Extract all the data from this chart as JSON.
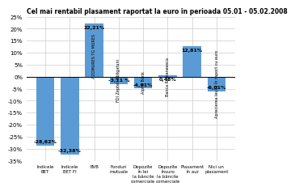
{
  "title": "Cel mai rentabil plasament raportat la euro în perioada 05.01 - 05.02.2008",
  "categories": [
    "Indicele\nBET",
    "Indicele\nBET FI",
    "BVB",
    "Fonduri\nmutuale",
    "Depozite\nîn lei\nla băncile\ncomerciale",
    "Depozite\nînsuro\nla băncile\ncomerciale",
    "Plasament\nîn aur",
    "Nici un\nplasament"
  ],
  "rotated_labels": [
    "AZOMURES TG MURES",
    "FDI Zepter Obligatuni",
    "Alpha Bank",
    "Banca Romaneasca",
    "Aprecierea leului în raport cu euro"
  ],
  "rotated_label_indices": [
    2,
    3,
    4,
    5,
    7
  ],
  "values": [
    -28.62,
    -32.38,
    22.21,
    -3.11,
    -4.91,
    0.48,
    12.81,
    -6.01
  ],
  "bar_color": "#5B9BD5",
  "ylim": [
    -35,
    25
  ],
  "yticks": [
    -35,
    -30,
    -25,
    -20,
    -15,
    -10,
    -5,
    0,
    5,
    10,
    15,
    20,
    25
  ],
  "ytick_labels": [
    "-35%",
    "-30%",
    "-25%",
    "-20%",
    "-15%",
    "-10%",
    "-5%",
    "0%",
    "5%",
    "10%",
    "15%",
    "20%",
    "25%"
  ],
  "value_labels": [
    "-28,62%",
    "-32,38%",
    "22,21%",
    "-3,11 %",
    "-4,91%",
    "0,48%",
    "12,81%",
    "-6,01%"
  ],
  "background_color": "#ffffff",
  "grid_color": "#cccccc"
}
